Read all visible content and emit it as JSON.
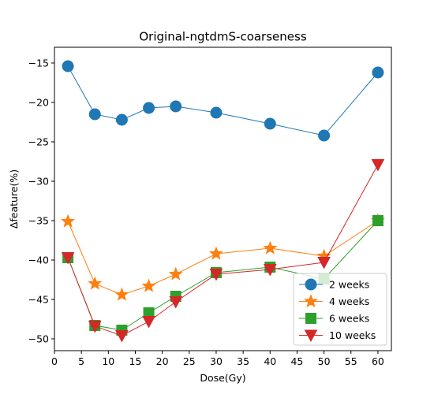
{
  "chart_data": {
    "type": "line",
    "title": "Original-ngtdmS-coarseness",
    "xlabel": "Dose(Gy)",
    "ylabel": "Δfeature(%)",
    "xlim": [
      0,
      62.5
    ],
    "ylim": [
      -51.5,
      -13
    ],
    "xticks": [
      0,
      5,
      10,
      15,
      20,
      25,
      30,
      35,
      40,
      45,
      50,
      55,
      60
    ],
    "yticks": [
      -50,
      -45,
      -40,
      -35,
      -30,
      -25,
      -20,
      -15
    ],
    "ytick_labels": [
      "−50",
      "−45",
      "−40",
      "−35",
      "−30",
      "−25",
      "−20",
      "−15"
    ],
    "grid": false,
    "legend_position": "lower-right",
    "x": [
      2.5,
      7.5,
      12.5,
      17.5,
      22.5,
      30,
      40,
      50,
      60
    ],
    "series": [
      {
        "name": "2 weeks",
        "color": "#1f77b4",
        "marker": "circle",
        "values": [
          -15.4,
          -21.5,
          -22.2,
          -20.7,
          -20.5,
          -21.3,
          -22.7,
          -24.2,
          -16.2
        ]
      },
      {
        "name": "4 weeks",
        "color": "#ff7f0e",
        "marker": "star",
        "values": [
          -35.1,
          -43.0,
          -44.4,
          -43.3,
          -41.8,
          -39.2,
          -38.5,
          -39.5,
          -35.0
        ]
      },
      {
        "name": "6 weeks",
        "color": "#2ca02c",
        "marker": "square",
        "values": [
          -39.7,
          -48.3,
          -48.9,
          -46.7,
          -44.6,
          -41.6,
          -40.9,
          -42.4,
          -35.0
        ]
      },
      {
        "name": "10 weeks",
        "color": "#d62728",
        "marker": "triangle-down",
        "values": [
          -39.7,
          -48.4,
          -49.6,
          -47.8,
          -45.3,
          -41.8,
          -41.2,
          -40.3,
          -27.9
        ]
      }
    ]
  }
}
